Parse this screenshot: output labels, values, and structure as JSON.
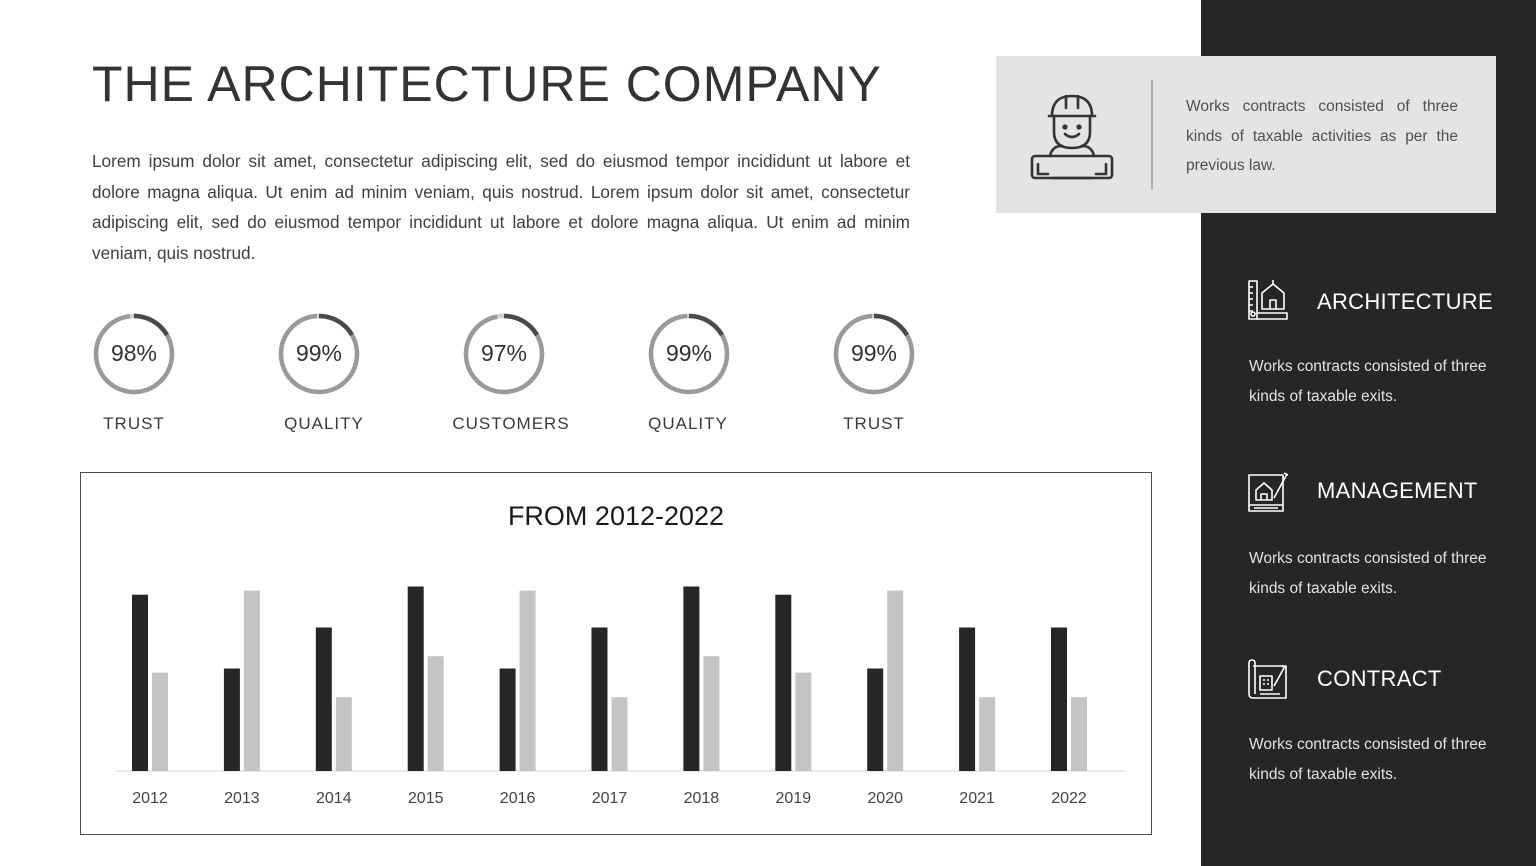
{
  "title": "THE ARCHITECTURE COMPANY",
  "intro": "Lorem ipsum dolor sit amet, consectetur adipiscing elit, sed do eiusmod tempor incididunt ut labore et dolore magna aliqua. Ut enim ad minim veniam, quis nostrud. Lorem ipsum dolor sit amet, consectetur adipiscing elit, sed do eiusmod tempor incididunt ut labore et dolore magna aliqua. Ut enim ad minim veniam, quis nostrud.",
  "stats": [
    {
      "value": "98%",
      "label": "TRUST",
      "percent": 98
    },
    {
      "value": "99%",
      "label": "QUALITY",
      "percent": 99
    },
    {
      "value": "97%",
      "label": "CUSTOMERS",
      "percent": 97
    },
    {
      "value": "99%",
      "label": "QUALITY",
      "percent": 99
    },
    {
      "value": "99%",
      "label": "TRUST",
      "percent": 99
    }
  ],
  "chart_data": {
    "type": "bar",
    "title": "FROM 2012-2022",
    "xlabel": "",
    "ylabel": "",
    "grid": false,
    "categories": [
      "2012",
      "2013",
      "2014",
      "2015",
      "2016",
      "2017",
      "2018",
      "2019",
      "2020",
      "2021",
      "2022"
    ],
    "series": [
      {
        "values": [
          4.3,
          2.5,
          3.5,
          4.5,
          2.5,
          3.5,
          4.5,
          4.3,
          2.5,
          3.5,
          3.5
        ],
        "color": "#262626"
      },
      {
        "values": [
          2.4,
          4.4,
          1.8,
          2.8,
          4.4,
          1.8,
          2.8,
          2.4,
          4.4,
          1.8,
          1.8
        ],
        "color": "#c4c4c4"
      }
    ],
    "ylim": [
      0,
      5
    ]
  },
  "card": {
    "icon": "engineer-icon",
    "text": "Works contracts consisted of three kinds of taxable activities as per the previous law."
  },
  "features": [
    {
      "icon": "architecture-icon",
      "title": "ARCHITECTURE",
      "desc": "Works contracts consisted of three kinds of taxable exits."
    },
    {
      "icon": "management-icon",
      "title": "MANAGEMENT",
      "desc": "Works contracts consisted of three kinds of taxable exits."
    },
    {
      "icon": "contract-icon",
      "title": "CONTRACT",
      "desc": "Works contracts consisted of three kinds of taxable exits."
    }
  ],
  "colors": {
    "sidebar": "#262626",
    "card": "#e4e4e4",
    "bar_dark": "#262626",
    "bar_light": "#c4c4c4"
  }
}
